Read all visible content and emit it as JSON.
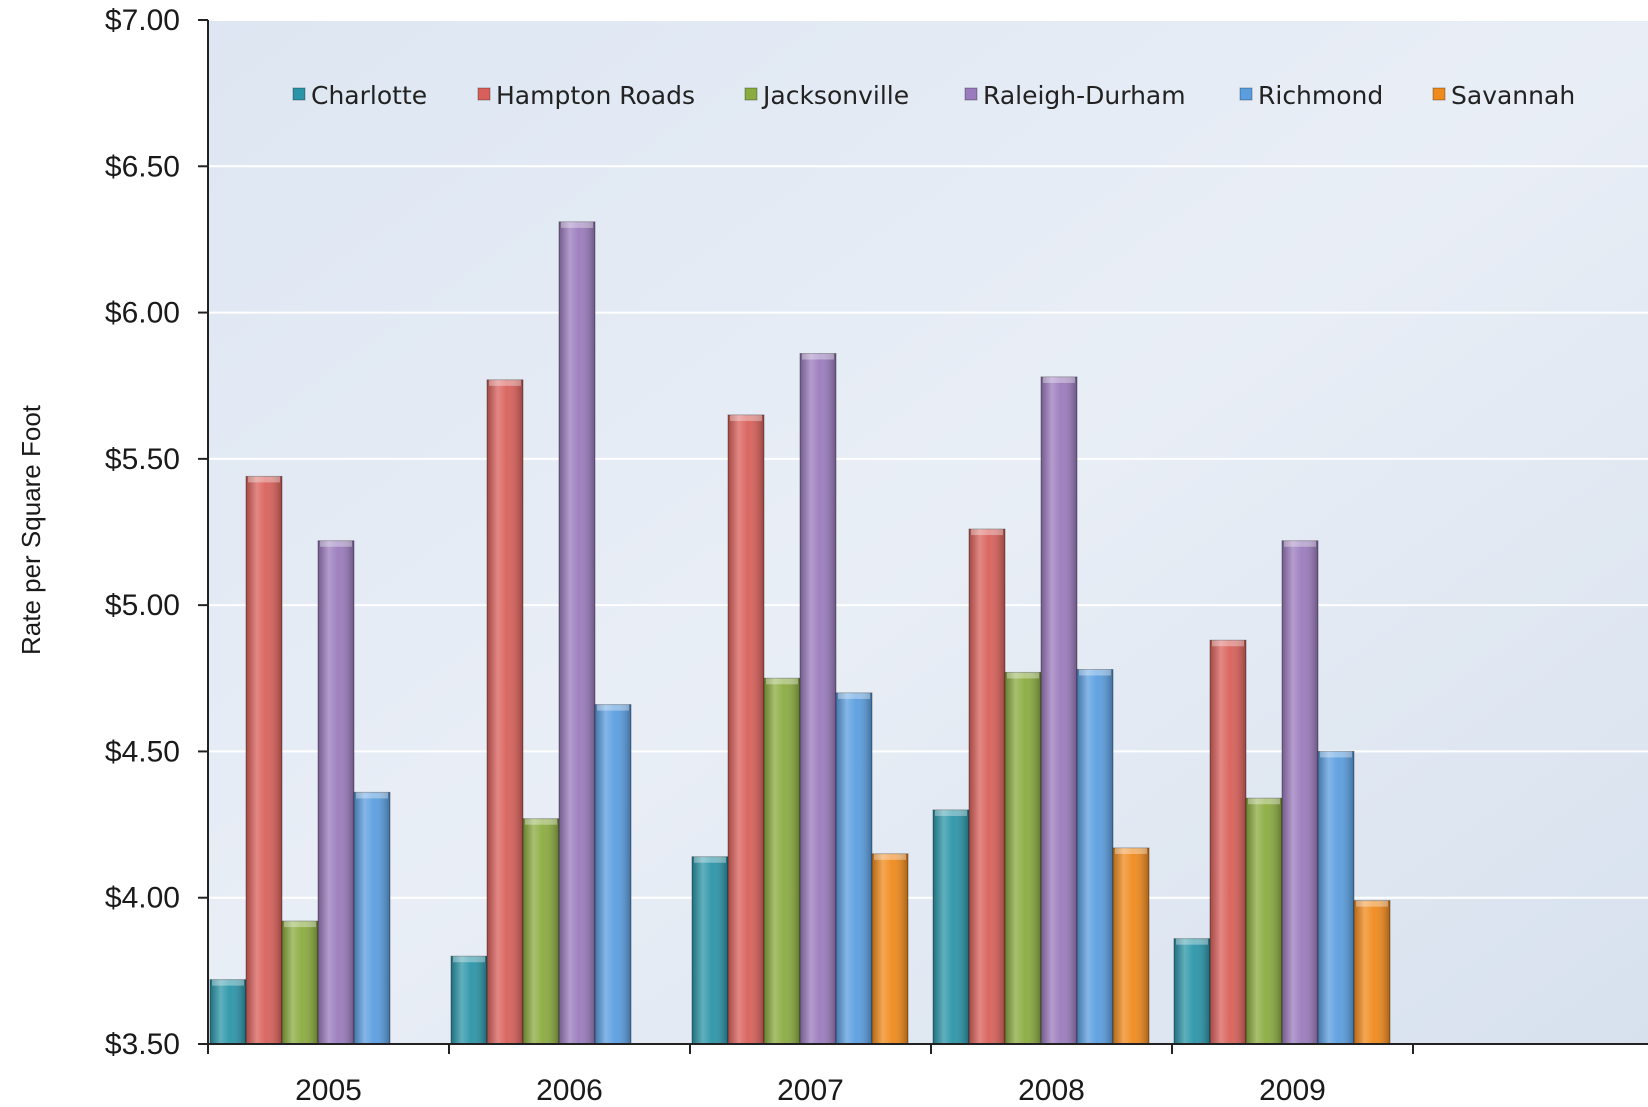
{
  "chart_data": {
    "type": "bar",
    "title": "",
    "xlabel": "",
    "ylabel": "Rate per Square Foot",
    "ylim": [
      3.5,
      7.0
    ],
    "y_ticks": [
      "$3.50",
      "$4.00",
      "$4.50",
      "$5.00",
      "$5.50",
      "$6.00",
      "$6.50",
      "$7.00"
    ],
    "y_tick_values": [
      3.5,
      4.0,
      4.5,
      5.0,
      5.5,
      6.0,
      6.5,
      7.0
    ],
    "grid": true,
    "legend_position": "top",
    "categories": [
      "2005",
      "2006",
      "2007",
      "2008",
      "2009"
    ],
    "series": [
      {
        "name": "Charlotte",
        "color": "#2a95a8",
        "values": [
          3.72,
          3.8,
          4.14,
          4.3,
          3.86
        ]
      },
      {
        "name": "Hampton Roads",
        "color": "#d9605a",
        "values": [
          5.44,
          5.77,
          5.65,
          5.26,
          4.88
        ]
      },
      {
        "name": "Jacksonville",
        "color": "#8aab3f",
        "values": [
          3.92,
          4.27,
          4.75,
          4.77,
          4.34
        ]
      },
      {
        "name": "Raleigh-Durham",
        "color": "#9a7bbd",
        "values": [
          5.22,
          6.31,
          5.86,
          5.78,
          5.22
        ]
      },
      {
        "name": "Richmond",
        "color": "#5a9ee0",
        "values": [
          4.36,
          4.66,
          4.7,
          4.78,
          4.5
        ]
      },
      {
        "name": "Savannah",
        "color": "#f08a1c",
        "values": [
          null,
          null,
          4.15,
          4.17,
          3.99
        ]
      }
    ]
  }
}
